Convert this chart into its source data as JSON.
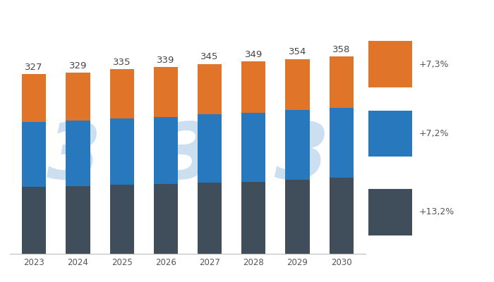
{
  "years": [
    2023,
    2024,
    2025,
    2026,
    2027,
    2028,
    2029,
    2030
  ],
  "totals": [
    327,
    329,
    335,
    339,
    345,
    349,
    354,
    358
  ],
  "chicken": [
    122,
    123,
    125,
    127,
    129,
    131,
    134,
    138
  ],
  "pork": [
    118,
    119,
    121,
    122,
    124,
    125,
    127,
    127
  ],
  "beef": [
    87,
    87,
    89,
    90,
    92,
    93,
    93,
    93
  ],
  "colors": {
    "chicken": "#404d5b",
    "pork": "#2878be",
    "beef": "#e07428"
  },
  "legend_items": [
    {
      "pct": "+7,3%",
      "color": "#e07428"
    },
    {
      "pct": "+7,2%",
      "color": "#2878be"
    },
    {
      "pct": "+13,2%",
      "color": "#404d5b"
    }
  ],
  "background_color": "#ffffff",
  "watermark_color": "#ccdff0",
  "bar_width": 0.55,
  "ylim": [
    0,
    420
  ]
}
